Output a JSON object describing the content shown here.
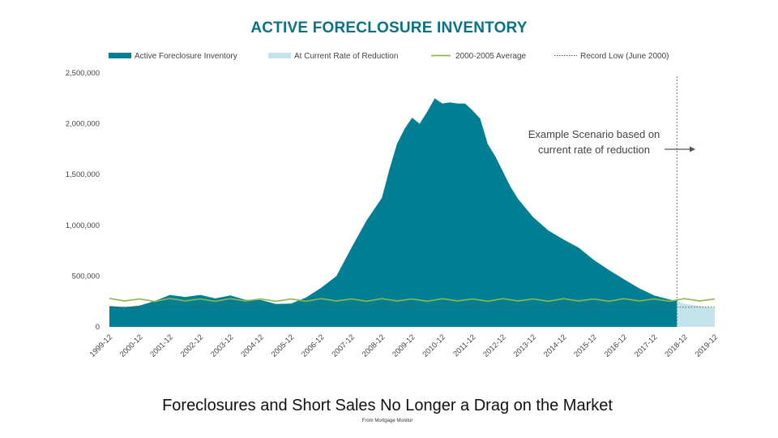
{
  "slide": {
    "caption": "Foreclosures and Short Sales No Longer a Drag on the Market",
    "source": "From Mortgage Monitor"
  },
  "chart_data": {
    "type": "area",
    "title": "ACTIVE FORECLOSURE INVENTORY",
    "xlabel": "",
    "ylabel": "",
    "ylim": [
      0,
      2500000
    ],
    "y_ticks": [
      {
        "value": 2500000,
        "label": "2,500,000"
      },
      {
        "value": 2000000,
        "label": "2,000,000"
      },
      {
        "value": 1500000,
        "label": "1,500,000"
      },
      {
        "value": 1000000,
        "label": "1,000,000"
      },
      {
        "value": 500000,
        "label": "500,000"
      },
      {
        "value": 0,
        "label": "0"
      }
    ],
    "x_ticks": [
      "1999-12",
      "2000-12",
      "2001-12",
      "2002-12",
      "2003-12",
      "2004-12",
      "2005-12",
      "2006-12",
      "2007-12",
      "2008-12",
      "2009-12",
      "2010-12",
      "2011-12",
      "2012-12",
      "2013-12",
      "2014-12",
      "2015-12",
      "2016-12",
      "2017-12",
      "2018-12",
      "2019-12"
    ],
    "x_range": [
      "1999-12",
      "2019-12"
    ],
    "grid": false,
    "legend_position": "top",
    "legend": [
      {
        "name": "Active Foreclosure Inventory",
        "marker": "area",
        "color": "#007f94"
      },
      {
        "name": "At Current Rate of Reduction",
        "marker": "area",
        "color": "#c5e3ea"
      },
      {
        "name": "2000-2005 Average",
        "marker": "line",
        "color": "#8cb84a"
      },
      {
        "name": "Record Low (June 2000)",
        "marker": "dotted",
        "color": "#555555"
      }
    ],
    "series": [
      {
        "name": "Active Foreclosure Inventory",
        "color": "#007f94",
        "points": [
          [
            "1999-12",
            205000
          ],
          [
            "2000-06",
            195000
          ],
          [
            "2000-12",
            210000
          ],
          [
            "2001-06",
            255000
          ],
          [
            "2001-12",
            315000
          ],
          [
            "2002-06",
            295000
          ],
          [
            "2002-12",
            315000
          ],
          [
            "2003-06",
            280000
          ],
          [
            "2003-12",
            310000
          ],
          [
            "2004-06",
            265000
          ],
          [
            "2004-12",
            265000
          ],
          [
            "2005-06",
            225000
          ],
          [
            "2005-12",
            230000
          ],
          [
            "2006-06",
            290000
          ],
          [
            "2006-12",
            385000
          ],
          [
            "2007-06",
            500000
          ],
          [
            "2007-12",
            780000
          ],
          [
            "2008-06",
            1050000
          ],
          [
            "2008-12",
            1270000
          ],
          [
            "2009-03",
            1550000
          ],
          [
            "2009-06",
            1800000
          ],
          [
            "2009-09",
            1950000
          ],
          [
            "2009-12",
            2060000
          ],
          [
            "2010-03",
            2000000
          ],
          [
            "2010-06",
            2120000
          ],
          [
            "2010-09",
            2250000
          ],
          [
            "2010-12",
            2200000
          ],
          [
            "2011-03",
            2210000
          ],
          [
            "2011-06",
            2200000
          ],
          [
            "2011-09",
            2200000
          ],
          [
            "2011-12",
            2130000
          ],
          [
            "2012-03",
            2050000
          ],
          [
            "2012-06",
            1800000
          ],
          [
            "2012-09",
            1680000
          ],
          [
            "2012-12",
            1530000
          ],
          [
            "2013-03",
            1380000
          ],
          [
            "2013-06",
            1260000
          ],
          [
            "2013-12",
            1080000
          ],
          [
            "2014-06",
            950000
          ],
          [
            "2014-12",
            860000
          ],
          [
            "2015-06",
            780000
          ],
          [
            "2015-12",
            660000
          ],
          [
            "2016-06",
            560000
          ],
          [
            "2016-12",
            470000
          ],
          [
            "2017-06",
            380000
          ],
          [
            "2017-12",
            310000
          ],
          [
            "2018-06",
            270000
          ],
          [
            "2018-09",
            255000
          ]
        ]
      },
      {
        "name": "At Current Rate of Reduction",
        "color": "#c5e3ea",
        "points": [
          [
            "2018-09",
            255000
          ],
          [
            "2018-12",
            228000
          ],
          [
            "2019-06",
            205000
          ],
          [
            "2019-12",
            185000
          ]
        ]
      },
      {
        "name": "2000-2005 Average",
        "color": "#8cb84a",
        "points": [
          [
            "1999-12",
            280000
          ],
          [
            "2000-06",
            255000
          ],
          [
            "2000-12",
            275000
          ],
          [
            "2001-06",
            250000
          ],
          [
            "2001-12",
            280000
          ],
          [
            "2002-06",
            255000
          ],
          [
            "2002-12",
            275000
          ],
          [
            "2003-06",
            252000
          ],
          [
            "2003-12",
            278000
          ],
          [
            "2004-06",
            255000
          ],
          [
            "2004-12",
            275000
          ],
          [
            "2005-06",
            252000
          ],
          [
            "2005-12",
            275000
          ],
          [
            "2006-06",
            252000
          ],
          [
            "2006-12",
            278000
          ],
          [
            "2007-06",
            255000
          ],
          [
            "2007-12",
            275000
          ],
          [
            "2008-06",
            252000
          ],
          [
            "2008-12",
            278000
          ],
          [
            "2009-06",
            255000
          ],
          [
            "2009-12",
            275000
          ],
          [
            "2010-06",
            252000
          ],
          [
            "2010-12",
            278000
          ],
          [
            "2011-06",
            255000
          ],
          [
            "2011-12",
            275000
          ],
          [
            "2012-06",
            252000
          ],
          [
            "2012-12",
            278000
          ],
          [
            "2013-06",
            255000
          ],
          [
            "2013-12",
            275000
          ],
          [
            "2014-06",
            252000
          ],
          [
            "2014-12",
            278000
          ],
          [
            "2015-06",
            255000
          ],
          [
            "2015-12",
            275000
          ],
          [
            "2016-06",
            252000
          ],
          [
            "2016-12",
            278000
          ],
          [
            "2017-06",
            255000
          ],
          [
            "2017-12",
            275000
          ],
          [
            "2018-06",
            252000
          ],
          [
            "2018-12",
            278000
          ],
          [
            "2019-06",
            255000
          ],
          [
            "2019-12",
            275000
          ]
        ]
      },
      {
        "name": "Record Low (June 2000)",
        "color": "#555555",
        "constant": 195000,
        "from": "1999-12",
        "to": "2019-12"
      }
    ],
    "annotations": [
      {
        "lines": [
          "Example Scenario based on",
          "current rate of reduction"
        ],
        "arrow": "right"
      }
    ],
    "scenario_divider": "2018-09"
  }
}
